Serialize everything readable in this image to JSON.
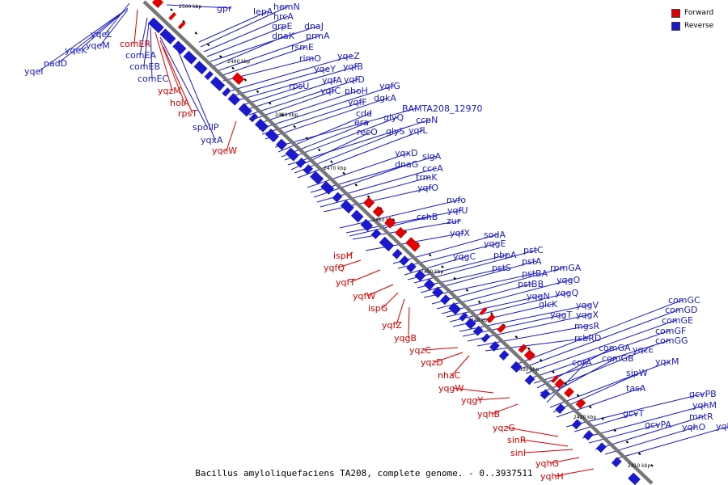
{
  "title": "Bacillus amyloliquefaciens TA208, complete genome. - 0..3937511",
  "legend": [
    {
      "label": "Forward",
      "color": "#e00000"
    },
    {
      "label": "Reverse",
      "color": "#1a1acc"
    }
  ],
  "colors": {
    "forward": "#e00000",
    "reverse": "#1a1acc",
    "backbone": "#777777"
  },
  "ticks": [
    "2500 kbp",
    "2490 kbp",
    "2480 kbp",
    "2470 kbp",
    "2460 kbp",
    "2450 kbp",
    "2440 kbp",
    "2430 kbp",
    "2420 kbp",
    "2410 kbp"
  ],
  "forward_labels": [
    "comER",
    "yqzM",
    "holA",
    "rpsT",
    "yqeW",
    "ispH",
    "yqfQ",
    "yqfT",
    "yqfW",
    "ispG",
    "yqfZ",
    "yqgB",
    "yqzC",
    "yqzD",
    "nhaC",
    "yqgW",
    "yqgY",
    "yqhB",
    "yqzG",
    "sinR",
    "sinI",
    "yqhG",
    "yqhH"
  ],
  "reverse_labels": [
    "yqeL",
    "yqeK",
    "yqeM",
    "nadD",
    "yqeI",
    "comEA",
    "comEB",
    "comEC",
    "spoIIP",
    "yqxA",
    "gpr",
    "lepA",
    "hemN",
    "hrcA",
    "grpE",
    "dnaJ",
    "dnaK",
    "prmA",
    "rsmE",
    "rimO",
    "yqeZ",
    "yqeY",
    "yqfB",
    "rpsU",
    "yqfA",
    "yqfD",
    "yqfC",
    "phoH",
    "yqfG",
    "yqfF",
    "dgkA",
    "BAMTA208_12970",
    "cdd",
    "era",
    "glyQ",
    "ccpN",
    "recO",
    "glyS",
    "yqfL",
    "yqxD",
    "sigA",
    "dnaG",
    "cccA",
    "trmK",
    "yqfO",
    "nvfo",
    "yqfU",
    "cshB",
    "zur",
    "yqfX",
    "sodA",
    "yqgE",
    "yqgC",
    "pbpA",
    "pstC",
    "pstS",
    "pstA",
    "pstBA",
    "rpmGA",
    "pstBB",
    "yqgO",
    "yqgN",
    "yqgQ",
    "glcK",
    "yqgV",
    "yqgT",
    "yqgX",
    "mgsR",
    "rsbRD",
    "comGC",
    "comGD",
    "comGE",
    "comGF",
    "comGG",
    "comGA",
    "yqzE",
    "comGB",
    "corA",
    "yqxM",
    "sipW",
    "tasA",
    "gcvPB",
    "gcvT",
    "yqhM",
    "gcvPA",
    "mntR",
    "yqhO",
    "yqhT"
  ]
}
